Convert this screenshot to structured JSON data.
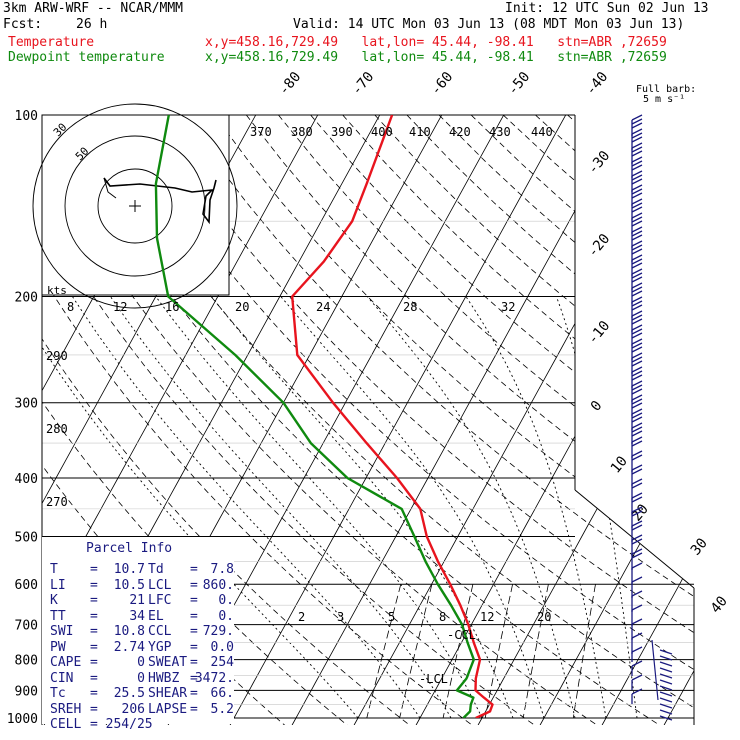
{
  "header": {
    "model": "3km ARW-WRF -- NCAR/MMM",
    "fcst_label": "Fcst:",
    "fcst_value": "26 h",
    "init": "Init: 12 UTC Sun 02 Jun 13",
    "valid": "Valid: 14 UTC Mon 03 Jun 13 (08 MDT Mon 03 Jun 13)",
    "temperature_label": "Temperature",
    "dewpoint_label": "Dewpoint temperature",
    "location_info": "x,y=458.16,729.49   lat,lon= 45.44, -98.41   stn=ABR ,72659"
  },
  "colors": {
    "temperature": "#e8141e",
    "dewpoint": "#0f8a0f",
    "wind": "#1a1a80",
    "grid": "#000000"
  },
  "wind_legend": {
    "title": "Full barb:",
    "value": "5 m s⁻¹"
  },
  "parcel_info": {
    "title": "Parcel Info",
    "rows": [
      {
        "l1": "T",
        "v1": "10.7",
        "l2": "Td",
        "v2": "7.8"
      },
      {
        "l1": "LI",
        "v1": "10.5",
        "l2": "LCL",
        "v2": "860."
      },
      {
        "l1": "K",
        "v1": "21",
        "l2": "LFC",
        "v2": "0."
      },
      {
        "l1": "TT",
        "v1": "34",
        "l2": "EL",
        "v2": "0."
      },
      {
        "l1": "SWI",
        "v1": "10.8",
        "l2": "CCL",
        "v2": "729."
      },
      {
        "l1": "PW",
        "v1": "2.74",
        "l2": "YGP",
        "v2": "0.0"
      },
      {
        "l1": "CAPE",
        "v1": "0",
        "l2": "SWEAT",
        "v2": "254"
      },
      {
        "l1": "CIN",
        "v1": "0",
        "l2": "HWBZ",
        "v2": "3472."
      },
      {
        "l1": "Tc",
        "v1": "25.5",
        "l2": "SHEAR",
        "v2": "66."
      },
      {
        "l1": "SREH",
        "v1": "206",
        "l2": "LAPSE",
        "v2": "5.2"
      },
      {
        "l1": "CELL",
        "v1": "254/25",
        "l2": "",
        "v2": ""
      }
    ]
  },
  "chart_data": {
    "type": "line",
    "chart_kind": "skew-T log-P",
    "y_axis": "pressure (hPa)",
    "ylim": [
      1000,
      100
    ],
    "pressure_ticks": [
      100,
      200,
      300,
      400,
      500,
      600,
      700,
      800,
      900,
      1000
    ],
    "isotherm_labels": [
      -80,
      -70,
      -60,
      -50,
      -40,
      -30,
      -20,
      -10,
      0,
      10,
      20,
      30,
      40
    ],
    "theta_labels": [
      370,
      380,
      390,
      400,
      410,
      420,
      430,
      440,
      290,
      280,
      270
    ],
    "mixing_ratio_labels": [
      2,
      3,
      5,
      8,
      12,
      20
    ],
    "lcl_markers": [
      "-CCL",
      "-LCL"
    ],
    "series": [
      {
        "name": "Temperature",
        "color": "#e8141e",
        "points": [
          {
            "p": 1000,
            "t": 9.0
          },
          {
            "p": 975,
            "t": 10.7
          },
          {
            "p": 950,
            "t": 10.5
          },
          {
            "p": 925,
            "t": 8.5
          },
          {
            "p": 900,
            "t": 6.5
          },
          {
            "p": 860,
            "t": 5.5
          },
          {
            "p": 800,
            "t": 4.5
          },
          {
            "p": 750,
            "t": 2.0
          },
          {
            "p": 700,
            "t": -0.5
          },
          {
            "p": 650,
            "t": -3.5
          },
          {
            "p": 600,
            "t": -7.0
          },
          {
            "p": 550,
            "t": -11.0
          },
          {
            "p": 500,
            "t": -15.0
          },
          {
            "p": 450,
            "t": -18.5
          },
          {
            "p": 400,
            "t": -25.0
          },
          {
            "p": 350,
            "t": -33.0
          },
          {
            "p": 300,
            "t": -42.0
          },
          {
            "p": 250,
            "t": -52.0
          },
          {
            "p": 200,
            "t": -58.0
          },
          {
            "p": 175,
            "t": -56.0
          },
          {
            "p": 150,
            "t": -55.0
          },
          {
            "p": 130,
            "t": -56.0
          },
          {
            "p": 100,
            "t": -58.0
          }
        ]
      },
      {
        "name": "Dewpoint temperature",
        "color": "#0f8a0f",
        "points": [
          {
            "p": 1000,
            "t": 7.0
          },
          {
            "p": 975,
            "t": 7.5
          },
          {
            "p": 950,
            "t": 7.0
          },
          {
            "p": 925,
            "t": 6.8
          },
          {
            "p": 900,
            "t": 3.5
          },
          {
            "p": 860,
            "t": 4.0
          },
          {
            "p": 800,
            "t": 3.5
          },
          {
            "p": 750,
            "t": 1.0
          },
          {
            "p": 700,
            "t": -1.5
          },
          {
            "p": 650,
            "t": -5.0
          },
          {
            "p": 600,
            "t": -9.0
          },
          {
            "p": 550,
            "t": -13.0
          },
          {
            "p": 500,
            "t": -17.0
          },
          {
            "p": 450,
            "t": -21.5
          },
          {
            "p": 400,
            "t": -33.0
          },
          {
            "p": 350,
            "t": -42.0
          },
          {
            "p": 300,
            "t": -50.0
          },
          {
            "p": 250,
            "t": -62.0
          },
          {
            "p": 200,
            "t": -78.0
          },
          {
            "p": 160,
            "t": -85.0
          },
          {
            "p": 130,
            "t": -90.0
          },
          {
            "p": 100,
            "t": -94.0
          }
        ]
      }
    ],
    "hodograph": {
      "speed_ring_labels": [
        "30",
        "50"
      ],
      "speed_axis_labels": [
        "kts"
      ],
      "speed_tick_labels": [
        "8",
        "12",
        "16",
        "20",
        "24",
        "28",
        "32"
      ]
    }
  }
}
